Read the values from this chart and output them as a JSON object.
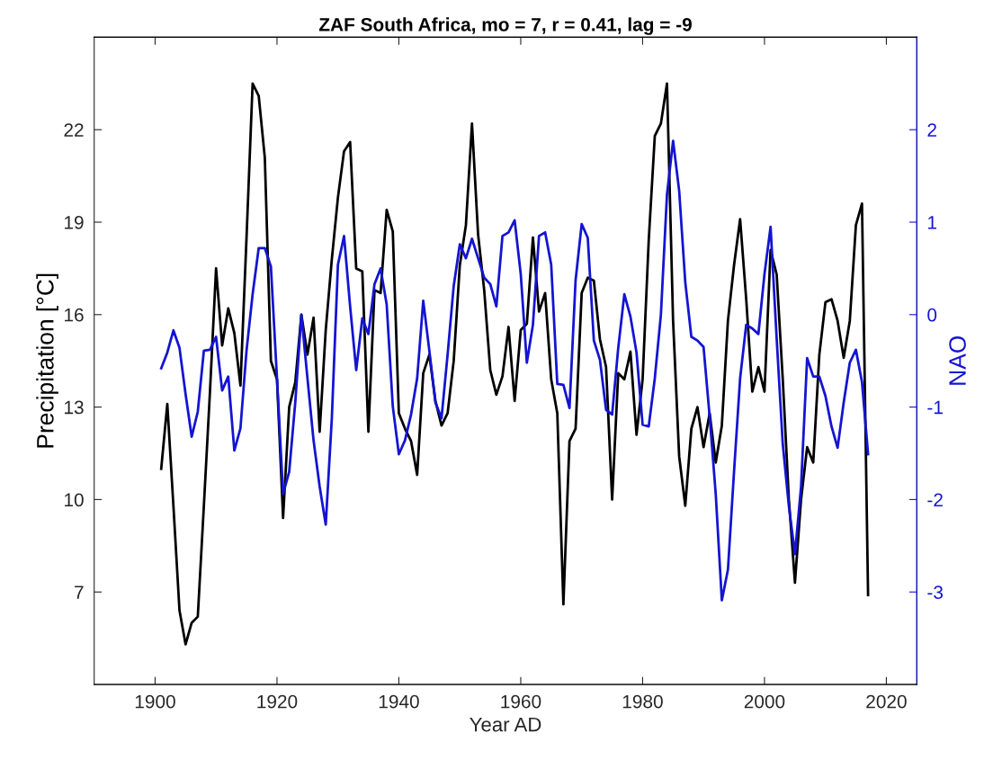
{
  "chart_data": {
    "type": "line",
    "title": "ZAF South Africa, mo = 7, r = 0.41, lag = -9",
    "xlabel": "Year AD",
    "ylabel": "Precipitation [°C]",
    "y2label": "NAO",
    "x": [
      1901,
      1902,
      1903,
      1904,
      1905,
      1906,
      1907,
      1908,
      1909,
      1910,
      1911,
      1912,
      1913,
      1914,
      1915,
      1916,
      1917,
      1918,
      1919,
      1920,
      1921,
      1922,
      1923,
      1924,
      1925,
      1926,
      1927,
      1928,
      1929,
      1930,
      1931,
      1932,
      1933,
      1934,
      1935,
      1936,
      1937,
      1938,
      1939,
      1940,
      1941,
      1942,
      1943,
      1944,
      1945,
      1946,
      1947,
      1948,
      1949,
      1950,
      1951,
      1952,
      1953,
      1954,
      1955,
      1956,
      1957,
      1958,
      1959,
      1960,
      1961,
      1962,
      1963,
      1964,
      1965,
      1966,
      1967,
      1968,
      1969,
      1970,
      1971,
      1972,
      1973,
      1974,
      1975,
      1976,
      1977,
      1978,
      1979,
      1980,
      1981,
      1982,
      1983,
      1984,
      1985,
      1986,
      1987,
      1988,
      1989,
      1990,
      1991,
      1992,
      1993,
      1994,
      1995,
      1996,
      1997,
      1998,
      1999,
      2000,
      2001,
      2002,
      2003,
      2004,
      2005,
      2006,
      2007,
      2008,
      2009,
      2010,
      2011,
      2012,
      2013,
      2014,
      2015,
      2016,
      2017
    ],
    "series": [
      {
        "color": "#000000",
        "values": [
          11.0,
          13.1,
          9.8,
          6.4,
          5.3,
          6.0,
          6.2,
          9.8,
          13.5,
          17.5,
          15.0,
          16.2,
          15.4,
          13.7,
          18.5,
          23.5,
          23.1,
          21.1,
          14.5,
          13.9,
          9.4,
          13.0,
          13.8,
          16.0,
          14.7,
          15.9,
          12.2,
          15.5,
          17.8,
          19.8,
          21.3,
          21.6,
          17.5,
          17.4,
          12.2,
          16.8,
          16.7,
          19.4,
          18.7,
          12.8,
          12.3,
          11.9,
          10.8,
          14.1,
          14.7,
          13.2,
          12.4,
          12.8,
          14.5,
          17.6,
          18.9,
          22.2,
          18.6,
          16.8,
          14.2,
          13.4,
          14.0,
          15.6,
          13.2,
          15.5,
          15.7,
          18.5,
          16.1,
          16.7,
          13.9,
          12.8,
          6.6,
          11.9,
          12.3,
          16.7,
          17.2,
          17.1,
          15.2,
          14.3,
          10.0,
          14.1,
          13.9,
          14.8,
          12.1,
          13.9,
          18.4,
          21.8,
          22.2,
          23.5,
          15.8,
          11.4,
          9.8,
          12.3,
          13.0,
          11.7,
          12.8,
          11.2,
          12.4,
          15.8,
          17.6,
          19.1,
          16.5,
          13.5,
          14.3,
          13.5,
          18.1,
          17.3,
          13.9,
          10.0,
          7.3,
          10.0,
          11.7,
          11.2,
          14.7,
          16.4,
          16.5,
          15.8,
          14.6,
          15.8,
          18.9,
          19.6,
          6.9
        ]
      },
      {
        "color": "#1414d2",
        "axis": "y2",
        "values": [
          -0.58,
          -0.41,
          -0.17,
          -0.36,
          -0.86,
          -1.32,
          -1.05,
          -0.39,
          -0.38,
          -0.24,
          -0.82,
          -0.67,
          -1.47,
          -1.23,
          -0.39,
          0.22,
          0.72,
          0.72,
          0.52,
          -0.69,
          -1.94,
          -1.7,
          -0.95,
          0.0,
          -0.69,
          -1.36,
          -1.86,
          -2.27,
          -1.12,
          0.54,
          0.85,
          0.09,
          -0.6,
          -0.04,
          -0.21,
          0.33,
          0.5,
          0.11,
          -0.99,
          -1.51,
          -1.36,
          -1.08,
          -0.69,
          0.15,
          -0.39,
          -0.95,
          -1.12,
          -0.43,
          0.31,
          0.76,
          0.61,
          0.82,
          0.61,
          0.4,
          0.33,
          0.09,
          0.85,
          0.89,
          1.02,
          0.44,
          -0.52,
          -0.11,
          0.85,
          0.89,
          0.54,
          -0.75,
          -0.76,
          -1.01,
          0.37,
          0.98,
          0.83,
          -0.28,
          -0.49,
          -1.03,
          -1.08,
          -0.36,
          0.22,
          -0.02,
          -0.41,
          -1.19,
          -1.21,
          -0.69,
          0.0,
          1.3,
          1.88,
          1.34,
          0.35,
          -0.24,
          -0.28,
          -0.35,
          -1.1,
          -1.94,
          -3.09,
          -2.76,
          -1.7,
          -0.69,
          -0.11,
          -0.15,
          -0.21,
          0.44,
          0.95,
          -0.26,
          -1.4,
          -2.07,
          -2.59,
          -1.86,
          -0.47,
          -0.67,
          -0.67,
          -0.88,
          -1.21,
          -1.44,
          -0.95,
          -0.52,
          -0.38,
          -0.73,
          -1.51
        ]
      }
    ],
    "xlim": [
      1890,
      2025
    ],
    "xticks": [
      1900,
      1920,
      1940,
      1960,
      1980,
      2000,
      2020
    ],
    "ylim": [
      4,
      25
    ],
    "yticks": [
      7,
      10,
      13,
      16,
      19,
      22
    ],
    "y2lim": [
      -4,
      3
    ],
    "y2ticks": [
      -3,
      -2,
      -1,
      0,
      1,
      2
    ],
    "grid": false,
    "legend": false,
    "marker": "none",
    "line_style": "solid"
  }
}
